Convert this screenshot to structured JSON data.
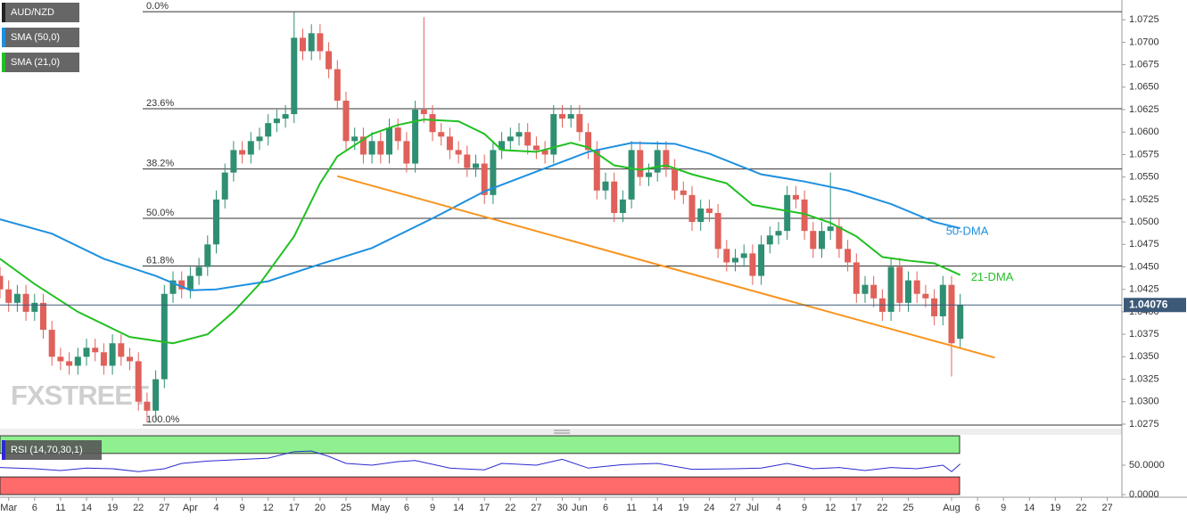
{
  "chart_data": {
    "type": "candlestick",
    "name": "AUD/NZD",
    "ylim": [
      1.0271,
      1.0747
    ],
    "yticks": [
      1.0725,
      {
        "value": 1.07,
        "label": "1.0700"
      },
      1.0675,
      {
        "value": 1.065,
        "label": "1.0650"
      },
      1.0625,
      {
        "value": 1.06,
        "label": "1.0600"
      },
      1.0575,
      {
        "value": 1.055,
        "label": "1.0550"
      },
      1.0525,
      {
        "value": 1.05,
        "label": "1.0500"
      },
      1.0475,
      {
        "value": 1.045,
        "label": "1.0450"
      },
      1.0425,
      {
        "value": 1.04,
        "label": "1.0400"
      },
      1.0375,
      {
        "value": 1.035,
        "label": "1.0350"
      },
      1.0325,
      {
        "value": 1.03,
        "label": "1.0300"
      },
      1.0275
    ],
    "xticks": [
      {
        "value": 1,
        "label": "Mar"
      },
      {
        "value": 4,
        "label": "6"
      },
      {
        "value": 7,
        "label": "11"
      },
      {
        "value": 10,
        "label": "14"
      },
      {
        "value": 13,
        "label": "19"
      },
      {
        "value": 16,
        "label": "22"
      },
      {
        "value": 19,
        "label": "27"
      },
      {
        "value": 22,
        "label": "Apr"
      },
      {
        "value": 25,
        "label": "4"
      },
      {
        "value": 28,
        "label": "9"
      },
      {
        "value": 31,
        "label": "12"
      },
      {
        "value": 34,
        "label": "17"
      },
      {
        "value": 37,
        "label": "20"
      },
      {
        "value": 40,
        "label": "25"
      },
      {
        "value": 44,
        "label": "May"
      },
      {
        "value": 47,
        "label": "6"
      },
      {
        "value": 50,
        "label": "9"
      },
      {
        "value": 53,
        "label": "14"
      },
      {
        "value": 56,
        "label": "17"
      },
      {
        "value": 59,
        "label": "22"
      },
      {
        "value": 62,
        "label": "27"
      },
      {
        "value": 65,
        "label": "30"
      },
      {
        "value": 67,
        "label": "Jun"
      },
      {
        "value": 70,
        "label": "6"
      },
      {
        "value": 73,
        "label": "11"
      },
      {
        "value": 76,
        "label": "14"
      },
      {
        "value": 79,
        "label": "19"
      },
      {
        "value": 82,
        "label": "24"
      },
      {
        "value": 85,
        "label": "27"
      },
      {
        "value": 87,
        "label": "Jul"
      },
      {
        "value": 90,
        "label": "4"
      },
      {
        "value": 93,
        "label": "9"
      },
      {
        "value": 96,
        "label": "12"
      },
      {
        "value": 99,
        "label": "17"
      },
      {
        "value": 102,
        "label": "22"
      },
      {
        "value": 105,
        "label": "25"
      },
      {
        "value": 110,
        "label": "Aug"
      },
      {
        "value": 113,
        "label": "6"
      },
      {
        "value": 116,
        "label": "9"
      },
      {
        "value": 119,
        "label": "14"
      },
      {
        "value": 122,
        "label": "19"
      },
      {
        "value": 125,
        "label": "22"
      },
      {
        "value": 128,
        "label": "27"
      }
    ],
    "up_color": "#2f8f72",
    "down_color": "#e0605a",
    "open": [
      1.044,
      1.0425,
      1.041,
      1.042,
      1.04,
      1.041,
      1.038,
      1.035,
      1.0345,
      1.034,
      1.035,
      1.036,
      1.0355,
      1.034,
      1.0365,
      1.035,
      1.0345,
      1.03,
      1.029,
      1.0325,
      1.042,
      1.0435,
      1.0425,
      1.044,
      1.045,
      1.0475,
      1.0525,
      1.0555,
      1.058,
      1.0575,
      1.059,
      1.0595,
      1.061,
      1.0615,
      1.062,
      1.0705,
      1.069,
      1.071,
      1.069,
      1.067,
      1.0635,
      1.059,
      1.0595,
      1.0575,
      1.059,
      1.0575,
      1.0605,
      1.059,
      1.0565,
      1.0625,
      1.062,
      1.06,
      1.0595,
      1.058,
      1.0575,
      1.056,
      1.0565,
      1.053,
      1.058,
      1.059,
      1.0595,
      1.06,
      1.0585,
      1.058,
      1.0575,
      1.062,
      1.0615,
      1.062,
      1.06,
      1.058,
      1.0535,
      1.0545,
      1.051,
      1.0525,
      1.058,
      1.055,
      1.0555,
      1.058,
      1.056,
      1.0535,
      1.053,
      1.05,
      1.0515,
      1.051,
      1.047,
      1.0455,
      1.046,
      1.0465,
      1.044,
      1.0475,
      1.0485,
      1.049,
      1.053,
      1.0525,
      1.049,
      1.047,
      1.049,
      1.0495,
      1.047,
      1.0455,
      1.042,
      1.043,
      1.0415,
      1.04,
      1.045,
      1.041,
      1.0435,
      1.042,
      1.0415,
      1.0395,
      1.043,
      1.037
    ],
    "high": [
      1.045,
      1.0435,
      1.043,
      1.043,
      1.042,
      1.042,
      1.039,
      1.036,
      1.0355,
      1.036,
      1.037,
      1.037,
      1.0365,
      1.0375,
      1.0375,
      1.036,
      1.0355,
      1.031,
      1.0335,
      1.043,
      1.0445,
      1.0445,
      1.045,
      1.046,
      1.0485,
      1.0535,
      1.0565,
      1.059,
      1.059,
      1.06,
      1.0605,
      1.062,
      1.0625,
      1.063,
      1.0734,
      1.0715,
      1.072,
      1.072,
      1.07,
      1.068,
      1.0645,
      1.0605,
      1.0605,
      1.06,
      1.06,
      1.0615,
      1.0615,
      1.06,
      1.0635,
      1.0728,
      1.063,
      1.061,
      1.0605,
      1.059,
      1.0585,
      1.0575,
      1.0575,
      1.059,
      1.06,
      1.0605,
      1.061,
      1.061,
      1.0595,
      1.059,
      1.063,
      1.063,
      1.063,
      1.063,
      1.061,
      1.059,
      1.0555,
      1.0555,
      1.0535,
      1.059,
      1.059,
      1.0565,
      1.059,
      1.059,
      1.057,
      1.0545,
      1.054,
      1.0525,
      1.0525,
      1.052,
      1.048,
      1.047,
      1.0475,
      1.0475,
      1.0485,
      1.0495,
      1.05,
      1.054,
      1.054,
      1.0535,
      1.05,
      1.05,
      1.0555,
      1.0505,
      1.048,
      1.0465,
      1.044,
      1.044,
      1.0425,
      1.046,
      1.046,
      1.0445,
      1.0445,
      1.043,
      1.0425,
      1.044,
      1.044,
      1.042
    ],
    "low": [
      1.0415,
      1.04,
      1.04,
      1.039,
      1.039,
      1.037,
      1.034,
      1.0335,
      1.033,
      1.033,
      1.034,
      1.0345,
      1.033,
      1.033,
      1.034,
      1.0335,
      1.029,
      1.0277,
      1.028,
      1.0315,
      1.041,
      1.0415,
      1.0415,
      1.043,
      1.044,
      1.0465,
      1.0515,
      1.0545,
      1.0565,
      1.0565,
      1.058,
      1.0585,
      1.06,
      1.0605,
      1.061,
      1.068,
      1.068,
      1.068,
      1.066,
      1.0625,
      1.058,
      1.058,
      1.0565,
      1.0565,
      1.0565,
      1.0565,
      1.058,
      1.0555,
      1.0555,
      1.061,
      1.059,
      1.0585,
      1.057,
      1.0565,
      1.055,
      1.055,
      1.052,
      1.052,
      1.057,
      1.058,
      1.0585,
      1.0575,
      1.057,
      1.0565,
      1.0565,
      1.0605,
      1.0605,
      1.059,
      1.057,
      1.0525,
      1.0525,
      1.05,
      1.05,
      1.0515,
      1.054,
      1.054,
      1.0545,
      1.055,
      1.0525,
      1.052,
      1.049,
      1.049,
      1.05,
      1.046,
      1.0445,
      1.0445,
      1.045,
      1.043,
      1.043,
      1.0465,
      1.0475,
      1.048,
      1.0515,
      1.048,
      1.046,
      1.046,
      1.048,
      1.046,
      1.0445,
      1.041,
      1.041,
      1.0405,
      1.039,
      1.039,
      1.04,
      1.04,
      1.041,
      1.0405,
      1.0385,
      1.0385,
      1.0328,
      1.036
    ],
    "close": [
      1.0425,
      1.041,
      1.042,
      1.04,
      1.041,
      1.038,
      1.035,
      1.0345,
      1.034,
      1.035,
      1.036,
      1.0355,
      1.034,
      1.0365,
      1.035,
      1.0345,
      1.03,
      1.029,
      1.0325,
      1.042,
      1.0435,
      1.0425,
      1.044,
      1.045,
      1.0475,
      1.0525,
      1.0555,
      1.058,
      1.0575,
      1.059,
      1.0595,
      1.061,
      1.0615,
      1.062,
      1.0705,
      1.069,
      1.071,
      1.069,
      1.067,
      1.0635,
      1.059,
      1.0595,
      1.0575,
      1.059,
      1.0575,
      1.0605,
      1.059,
      1.0565,
      1.0625,
      1.062,
      1.06,
      1.0595,
      1.058,
      1.0575,
      1.056,
      1.0565,
      1.053,
      1.058,
      1.059,
      1.0595,
      1.06,
      1.0585,
      1.058,
      1.0575,
      1.062,
      1.0615,
      1.062,
      1.06,
      1.058,
      1.0535,
      1.0545,
      1.051,
      1.0525,
      1.058,
      1.055,
      1.0555,
      1.058,
      1.056,
      1.0535,
      1.053,
      1.05,
      1.0515,
      1.051,
      1.047,
      1.0455,
      1.046,
      1.0465,
      1.044,
      1.0475,
      1.0485,
      1.049,
      1.053,
      1.0525,
      1.049,
      1.047,
      1.049,
      1.0495,
      1.047,
      1.0455,
      1.042,
      1.043,
      1.0415,
      1.04,
      1.045,
      1.041,
      1.0435,
      1.042,
      1.0415,
      1.0395,
      1.043,
      1.0365,
      1.04076
    ],
    "series": [
      {
        "name": "SMA (50,0)",
        "label": "50-DMA",
        "color": "#1e90e0",
        "x": [
          0,
          6,
          12,
          18,
          22,
          25,
          31,
          37,
          43,
          50,
          56,
          62,
          68,
          73,
          78,
          82,
          88,
          93,
          98,
          103,
          108,
          111
        ],
        "values": [
          1.0503,
          1.0487,
          1.0459,
          1.044,
          1.0424,
          1.0425,
          1.0434,
          1.0453,
          1.0471,
          1.0504,
          1.0534,
          1.0556,
          1.0578,
          1.0588,
          1.0587,
          1.0576,
          1.0553,
          1.0545,
          1.0535,
          1.052,
          1.05,
          1.0493
        ]
      },
      {
        "name": "SMA (21,0)",
        "label": "21-DMA",
        "color": "#22c022",
        "x": [
          0,
          4,
          9,
          15,
          20,
          24,
          27,
          30,
          34,
          37,
          39,
          43,
          46,
          49,
          53,
          56,
          58,
          62,
          66,
          68,
          71,
          74,
          77,
          80,
          84,
          87,
          90,
          93,
          96,
          99,
          102,
          105,
          108,
          111
        ],
        "values": [
          1.0459,
          1.0431,
          1.04,
          1.0372,
          1.0365,
          1.0375,
          1.04,
          1.0431,
          1.0484,
          1.0543,
          1.0573,
          1.0598,
          1.0608,
          1.0614,
          1.0612,
          1.0598,
          1.058,
          1.0578,
          1.0588,
          1.0583,
          1.0563,
          1.0558,
          1.0563,
          1.0553,
          1.0543,
          1.0519,
          1.0514,
          1.0509,
          1.0499,
          1.0484,
          1.0461,
          1.0457,
          1.0454,
          1.0441
        ]
      }
    ],
    "fib_levels": [
      {
        "label": "0.0%",
        "value": 1.0734
      },
      {
        "label": "23.6%",
        "value": 1.0626
      },
      {
        "label": "38.2%",
        "value": 1.0559
      },
      {
        "label": "50.0%",
        "value": 1.0504
      },
      {
        "label": "61.8%",
        "value": 1.0451
      },
      {
        "label": "100.0%",
        "value": 1.0274
      }
    ],
    "trendline": {
      "x": [
        39,
        115
      ],
      "values": [
        1.0551,
        1.0349
      ],
      "color": "#f7941d"
    },
    "watermark": "FXSTREET",
    "rsi": {
      "label": "RSI (14,70,30,1)",
      "color": "#2a2ad0",
      "ylim": [
        0,
        100
      ],
      "overbought": 70,
      "oversold": 30,
      "yticks": [
        {
          "value": 50,
          "label": "50.0000"
        },
        {
          "value": 0,
          "label": "0.0000"
        }
      ],
      "x": [
        0,
        4,
        7,
        10,
        13,
        16,
        19,
        21,
        24,
        27,
        31,
        34,
        36,
        38,
        40,
        43,
        46,
        48,
        52,
        56,
        58,
        62,
        65,
        68,
        72,
        76,
        80,
        85,
        88,
        91,
        94,
        97,
        100,
        103,
        106,
        109,
        110,
        111
      ],
      "values": [
        46,
        44,
        41,
        45,
        44,
        39,
        44,
        53,
        57,
        59,
        62,
        73,
        74,
        65,
        53,
        50,
        56,
        58,
        45,
        42,
        53,
        50,
        60,
        45,
        51,
        53,
        43,
        44,
        45,
        53,
        44,
        46,
        41,
        46,
        44,
        50,
        39,
        52
      ]
    }
  }
}
